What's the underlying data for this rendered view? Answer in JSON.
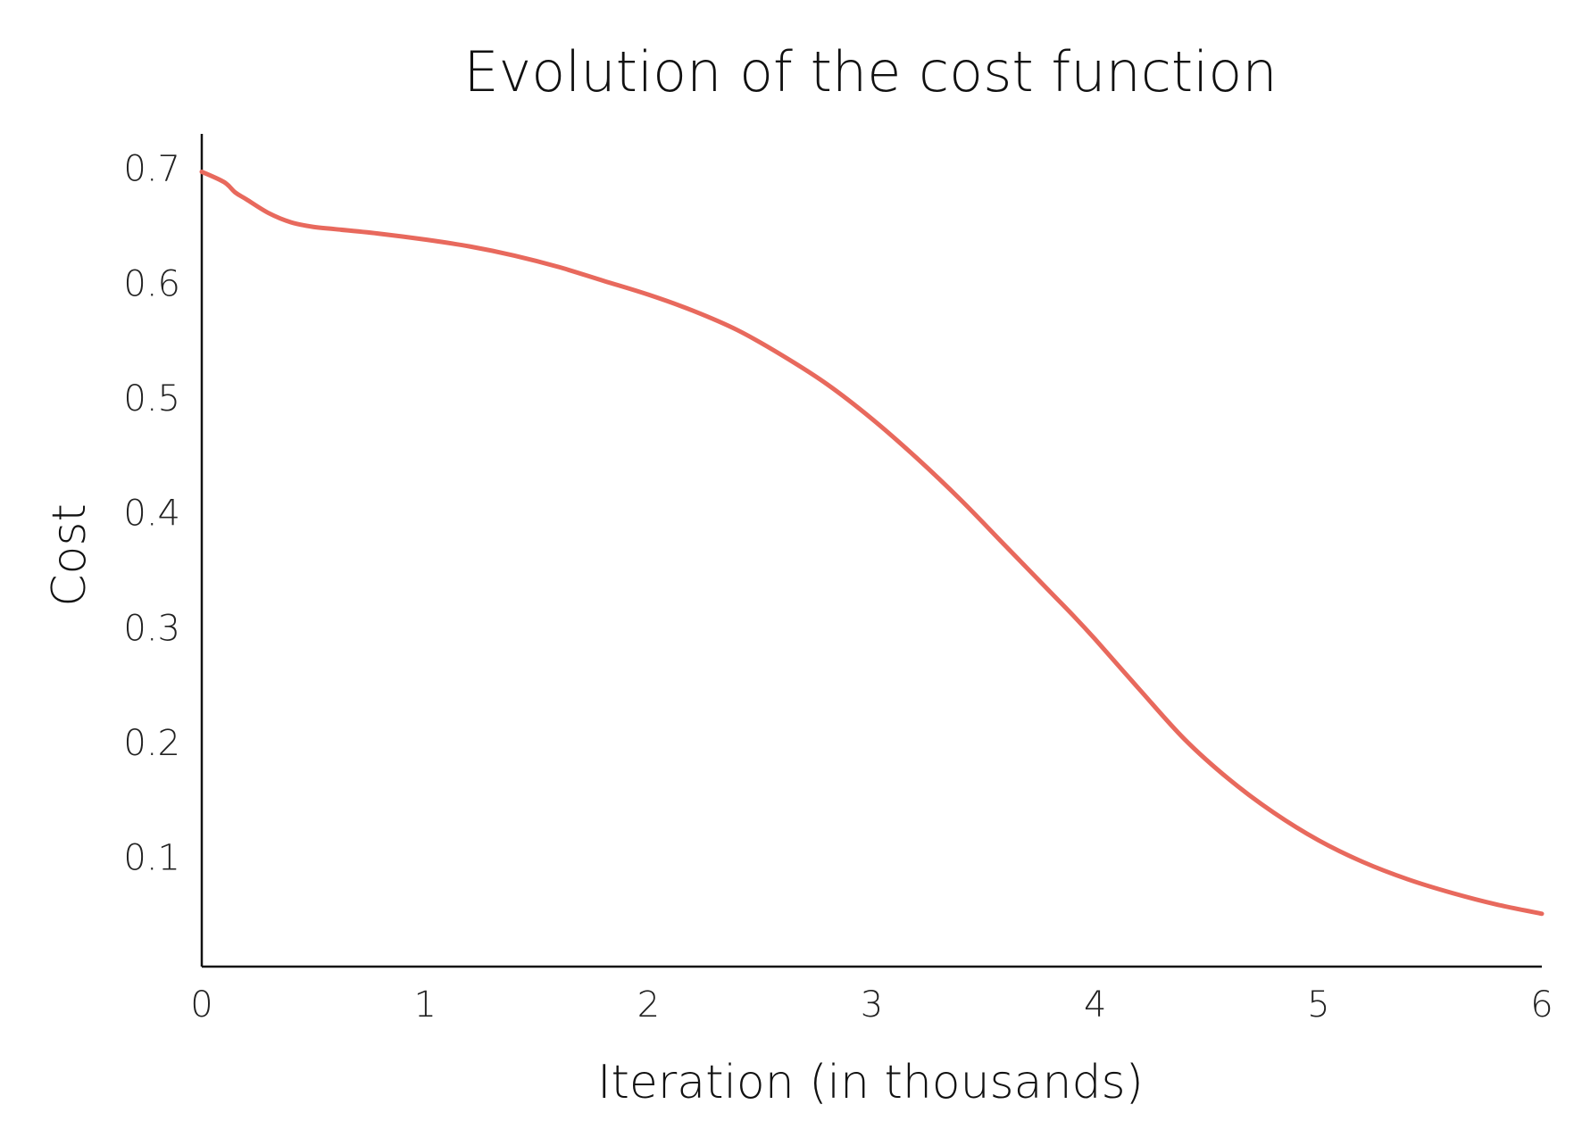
{
  "chart_data": {
    "type": "line",
    "title": "Evolution of the cost function",
    "xlabel": "Iteration (in thousands)",
    "ylabel": "Cost",
    "xlim": [
      0,
      6
    ],
    "ylim": [
      0.005,
      0.73
    ],
    "x_ticks": [
      0,
      1,
      2,
      3,
      4,
      5,
      6
    ],
    "x_tick_labels": [
      "0",
      "1",
      "2",
      "3",
      "4",
      "5",
      "6"
    ],
    "y_ticks": [
      0.1,
      0.2,
      0.3,
      0.4,
      0.5,
      0.6,
      0.7
    ],
    "y_tick_labels": [
      "0.1",
      "0.2",
      "0.3",
      "0.4",
      "0.5",
      "0.6",
      "0.7"
    ],
    "grid": false,
    "legend": "none",
    "series": [
      {
        "color": "#e8695d",
        "x": [
          0,
          0.1,
          0.15,
          0.2,
          0.3,
          0.4,
          0.5,
          0.6,
          0.8,
          1.0,
          1.2,
          1.4,
          1.6,
          1.8,
          2.0,
          2.2,
          2.4,
          2.6,
          2.8,
          3.0,
          3.2,
          3.4,
          3.6,
          3.8,
          3.9,
          4.0,
          4.2,
          4.4,
          4.6,
          4.8,
          5.0,
          5.2,
          5.4,
          5.6,
          5.8,
          6.0
        ],
        "y": [
          0.697,
          0.688,
          0.679,
          0.673,
          0.661,
          0.653,
          0.649,
          0.647,
          0.643,
          0.638,
          0.632,
          0.624,
          0.614,
          0.602,
          0.59,
          0.576,
          0.559,
          0.537,
          0.512,
          0.482,
          0.448,
          0.411,
          0.371,
          0.331,
          0.311,
          0.29,
          0.246,
          0.203,
          0.168,
          0.139,
          0.115,
          0.096,
          0.081,
          0.069,
          0.059,
          0.051
        ]
      }
    ]
  }
}
